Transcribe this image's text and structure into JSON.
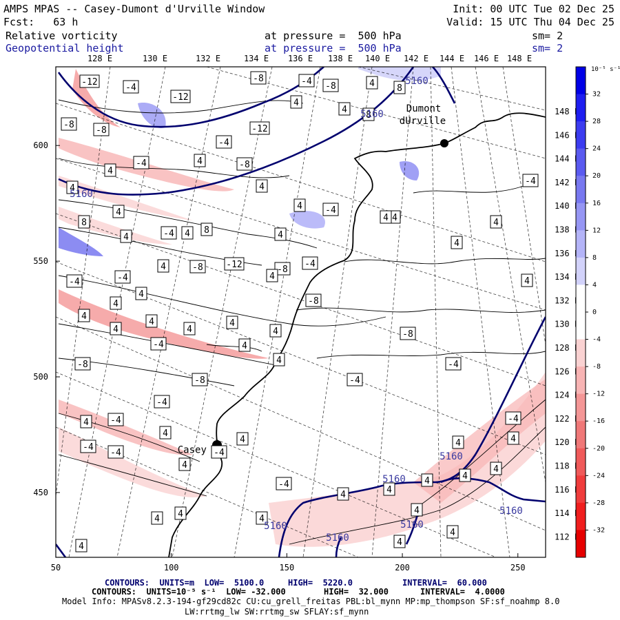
{
  "header": {
    "title": "AMPS MPAS -- Casey-Dumont d'Urville Window",
    "init": "Init: 00 UTC Tue 02 Dec 25",
    "fcst": "Fcst:   63 h",
    "valid": "Valid: 15 UTC Thu 04 Dec 25",
    "field1_name": "Relative vorticity",
    "field1_level": "at pressure =  500 hPa",
    "field1_sm": "sm= 2",
    "field2_name": "Geopotential height",
    "field2_level": "at pressure =  500 hPa",
    "field2_sm": "sm= 2"
  },
  "top_lon_labels": [
    "128 E",
    "130 E",
    "132 E",
    "134 E",
    "136 E",
    "138 E",
    "140 E",
    "142 E",
    "144 E",
    "146 E",
    "148 E"
  ],
  "right_lat_labels": [
    "148 E",
    "146 E",
    "144 E",
    "142 E",
    "140 E",
    "138 E",
    "136 E",
    "134 E",
    "132 E",
    "130 E",
    "128 E",
    "126 E",
    "124 E",
    "122 E",
    "120 E",
    "118 E",
    "116 E",
    "114 E",
    "112 E"
  ],
  "x_axis": {
    "ticks": [
      "50",
      "100",
      "150",
      "200",
      "250"
    ],
    "values": [
      50,
      100,
      150,
      200,
      250
    ],
    "range": [
      50,
      262
    ]
  },
  "y_axis": {
    "ticks": [
      "600",
      "550",
      "500",
      "450"
    ],
    "values": [
      600,
      550,
      500,
      450
    ],
    "range": [
      422,
      634
    ]
  },
  "colorbar": {
    "unit_label": "10⁻⁵ s⁻¹",
    "tick_labels": [
      "32",
      "28",
      "24",
      "20",
      "16",
      "12",
      "8",
      "4",
      "0",
      "-4",
      "-8",
      "-12",
      "-16",
      "-20",
      "-24",
      "-28",
      "-32"
    ],
    "colors": [
      "#0000e6",
      "#1e1ef0",
      "#3c3cf0",
      "#5a5af0",
      "#7878f0",
      "#9696f4",
      "#b4b4f8",
      "#d2d2fa",
      "#ffffff",
      "#ffffff",
      "#fad2d2",
      "#f8b4b4",
      "#f49696",
      "#f07878",
      "#f05a5a",
      "#f03c3c",
      "#f01e1e",
      "#e60000"
    ]
  },
  "stations": [
    {
      "name": "Dumont",
      "name2": "dUrville",
      "x": 219,
      "y": 604
    },
    {
      "name": "Casey",
      "name2": "",
      "x": 120,
      "y": 473
    }
  ],
  "height_contour_labels": [
    "5160",
    "5160",
    "5160",
    "5160",
    "5160",
    "5160",
    "5160",
    "5160",
    "5160"
  ],
  "vorticity_labels": [
    "-12",
    "-4",
    "-12",
    "-8",
    "-4",
    "-8",
    "4",
    "8",
    "4",
    "8",
    "4",
    "-8",
    "-8",
    "-12",
    "-4",
    "-4",
    "4",
    "4",
    "-8",
    "4",
    "4",
    "4",
    "8",
    "4",
    "-4",
    "4",
    "8",
    "4",
    "4",
    "-4",
    "4",
    "4",
    "-4",
    "4",
    "-8",
    "-12",
    "-8",
    "-4",
    "-4",
    "-4",
    "4",
    "4",
    "-8",
    "4",
    "4",
    "4",
    "4",
    "4",
    "4",
    "-8",
    "-4",
    "4",
    "4",
    "-4",
    "-8",
    "-8",
    "-4",
    "-4",
    "4",
    "-4",
    "4",
    "-4",
    "4",
    "-4",
    "-4",
    "4",
    "-4",
    "4",
    "4",
    "4",
    "4",
    "-4",
    "4",
    "4",
    "4",
    "4",
    "4",
    "4",
    "4",
    "4",
    "4",
    "4",
    "4",
    "4",
    "4",
    "4"
  ],
  "footer": {
    "line1_left": "CONTOURS:  UNITS=m  LOW=  5100.0",
    "line1_mid": "HIGH=  5220.0",
    "line1_right": "INTERVAL=  60.000",
    "line2_left": "CONTOURS:  UNITS=10⁻⁵ s⁻¹  LOW= -32.000",
    "line2_mid": "HIGH=  32.000",
    "line2_right": "INTERVAL=  4.0000",
    "line3": "Model Info: MPASv8.2.3-194-gf29cd82c CU:cu_grell_freitas PBL:bl_mynn MP:mp_thompson SF:sf_noahmp 8.0",
    "line4": "LW:rrtmg_lw SW:rrtmg_sw SFLAY:sf_mynn"
  }
}
